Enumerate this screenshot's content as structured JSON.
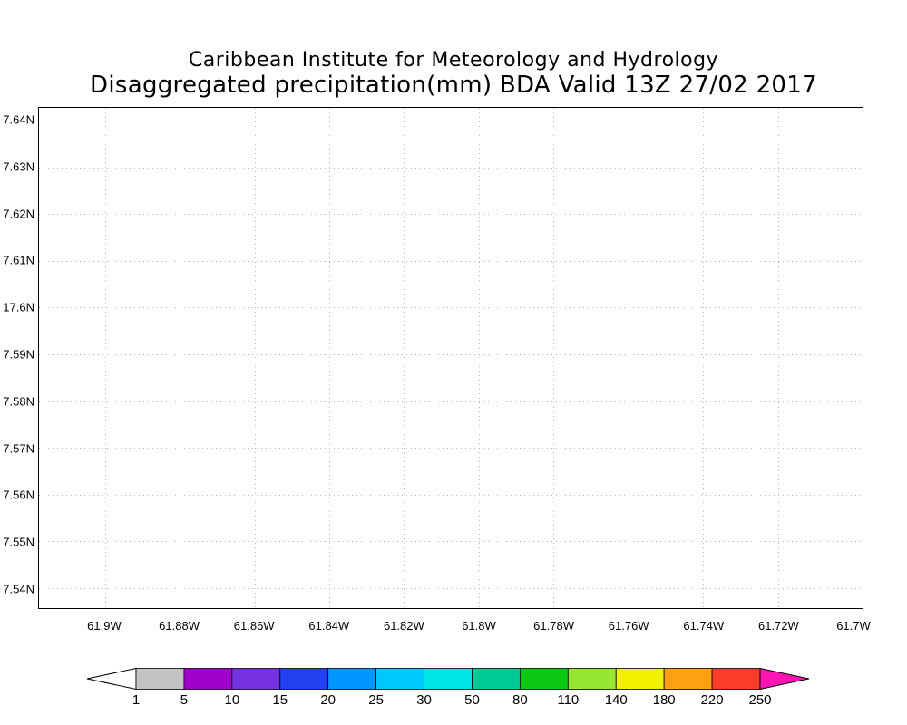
{
  "chart_data": {
    "type": "heatmap",
    "title": "Caribbean Institute for Meteorology and Hydrology",
    "subtitle": "Disaggregated precipitation(mm) BDA Valid 13Z 27/02 2017",
    "field": "Disaggregated precipitation (mm)",
    "region": "BDA",
    "valid_time": "13Z 27/02 2017",
    "x_axis": {
      "ticks": [
        "61.9W",
        "61.88W",
        "61.86W",
        "61.84W",
        "61.82W",
        "61.8W",
        "61.78W",
        "61.76W",
        "61.74W",
        "61.72W",
        "61.7W"
      ]
    },
    "y_axis": {
      "ticks": [
        "7.64N",
        "7.63N",
        "7.62N",
        "7.61N",
        "17.6N",
        "7.59N",
        "7.58N",
        "7.57N",
        "7.56N",
        "7.55N",
        "7.54N"
      ]
    },
    "grid": {
      "visible": true,
      "style": "dotted",
      "color": "#b3b3b3"
    },
    "plotted_values": [],
    "plot_note": "no precipitation shading visible in plot area",
    "colorbar": {
      "boundaries": [
        1,
        5,
        10,
        15,
        20,
        25,
        30,
        50,
        80,
        110,
        140,
        180,
        220,
        250
      ],
      "segment_colors": [
        "#c3c3c3",
        "#a000c8",
        "#7632e1",
        "#2241f0",
        "#0096ff",
        "#00c8ff",
        "#00e6e6",
        "#00c896",
        "#0ac814",
        "#96e632",
        "#f0f000",
        "#ffa014",
        "#fa3c28"
      ],
      "below_min_color": "#ffffff",
      "above_max_color": "#ff14b4",
      "outline_color": "#000000"
    }
  }
}
